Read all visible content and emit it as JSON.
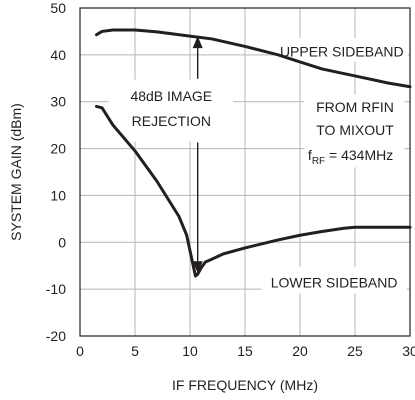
{
  "chart_data": {
    "type": "line",
    "xlabel": "IF FREQUENCY (MHz)",
    "ylabel": "SYSTEM GAIN (dBm)",
    "xlim": [
      0,
      30
    ],
    "ylim": [
      -20,
      50
    ],
    "grid": true,
    "xticks": [
      0,
      5,
      10,
      15,
      20,
      25,
      30
    ],
    "yticks": [
      -20,
      -10,
      0,
      10,
      20,
      30,
      40,
      50
    ],
    "series": [
      {
        "name": "UPPER SIDEBAND",
        "x": [
          1.5,
          2,
          3,
          5,
          7,
          10,
          12,
          15,
          18,
          20,
          22,
          25,
          28,
          30
        ],
        "y": [
          44.3,
          45,
          45.3,
          45.3,
          44.9,
          44,
          43.4,
          41.8,
          40,
          38.5,
          37,
          35.5,
          34,
          33.2
        ]
      },
      {
        "name": "LOWER SIDEBAND",
        "x": [
          1.5,
          2,
          3,
          5,
          7,
          9,
          9.7,
          10.2,
          10.5,
          10.7,
          11,
          11.4,
          11.8,
          12,
          13,
          15,
          18,
          20,
          22,
          24,
          25,
          27,
          30
        ],
        "y": [
          29,
          28.7,
          25,
          19.5,
          13,
          5.5,
          1.5,
          -4,
          -7.2,
          -6.8,
          -5.5,
          -4.2,
          -3.8,
          -3.6,
          -2.5,
          -1.2,
          0.5,
          1.5,
          2.3,
          3,
          3.2,
          3.2,
          3.2
        ]
      }
    ],
    "annotations": {
      "upper_label": "UPPER SIDEBAND",
      "lower_label": "LOWER SIDEBAND",
      "rejection_line1": "48dB IMAGE",
      "rejection_line2": "REJECTION",
      "from_line1": "FROM RFIN",
      "from_line2": "TO MIXOUT",
      "frf_main": "f",
      "frf_sub": "RF",
      "frf_rest": " = 434MHz"
    },
    "arrow": {
      "x": 10.7,
      "y_top": 44,
      "y_bottom": -6.6
    }
  }
}
